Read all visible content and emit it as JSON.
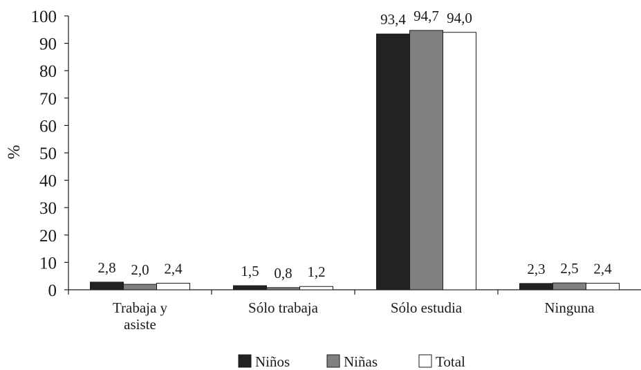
{
  "chart_data": {
    "type": "bar",
    "ylabel": "%",
    "xlabel": "",
    "ylim": [
      0,
      100
    ],
    "yticks": [
      0,
      10,
      20,
      30,
      40,
      50,
      60,
      70,
      80,
      90,
      100
    ],
    "categories": [
      [
        "Trabaja y",
        "asiste"
      ],
      [
        "Sólo trabaja"
      ],
      [
        "Sólo estudia"
      ],
      [
        "Ninguna"
      ]
    ],
    "series": [
      {
        "name": "Niños",
        "color": "#222222",
        "values": [
          2.8,
          1.5,
          93.4,
          2.3
        ],
        "labels": [
          "2,8",
          "1,5",
          "93,4",
          "2,3"
        ]
      },
      {
        "name": "Niñas",
        "color": "#808080",
        "values": [
          2.0,
          0.8,
          94.7,
          2.5
        ],
        "labels": [
          "2,0",
          "0,8",
          "94,7",
          "2,5"
        ]
      },
      {
        "name": "Total",
        "color": "#ffffff",
        "values": [
          2.4,
          1.2,
          94.0,
          2.4
        ],
        "labels": [
          "2,4",
          "1,2",
          "94,0",
          "2,4"
        ]
      }
    ],
    "legend_position": "bottom",
    "grid": false
  }
}
